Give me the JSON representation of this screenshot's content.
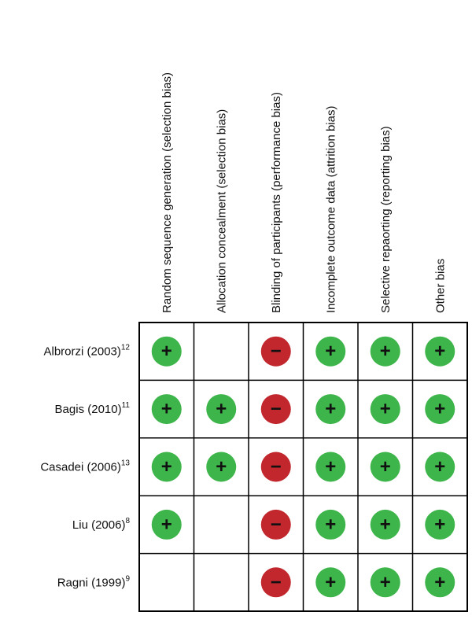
{
  "table": {
    "columns": [
      "Random sequence generation (selection bias)",
      "Allocation concealment (selection bias)",
      "Blinding of participants (performance bias)",
      "Incomplete outcome data (attrition bias)",
      "Selective repaorting (reporting bias)",
      "Other bias"
    ],
    "rows": [
      {
        "study": "Albrorzi (2003)",
        "ref": "12",
        "cells": [
          "+",
          null,
          "−",
          "+",
          "+",
          "+"
        ]
      },
      {
        "study": "Bagis (2010)",
        "ref": "11",
        "cells": [
          "+",
          "+",
          "−",
          "+",
          "+",
          "+"
        ]
      },
      {
        "study": "Casadei (2006)",
        "ref": "13",
        "cells": [
          "+",
          "+",
          "−",
          "+",
          "+",
          "+"
        ]
      },
      {
        "study": "Liu (2006)",
        "ref": "8",
        "cells": [
          "+",
          null,
          "−",
          "+",
          "+",
          "+"
        ]
      },
      {
        "study": "Ragni (1999)",
        "ref": "9",
        "cells": [
          null,
          null,
          "−",
          "+",
          "+",
          "+"
        ]
      }
    ],
    "colors": {
      "+": "#3db54a",
      "−": "#c1272d"
    }
  }
}
